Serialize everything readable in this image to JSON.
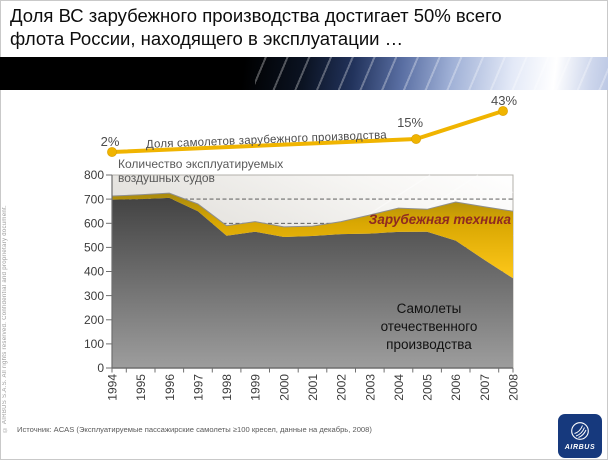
{
  "slide": {
    "title_line1": "Доля ВС зарубежного производства достигает 50% всего",
    "title_line2": "флота России, находящего в эксплуатации …",
    "source": "Источник: ACAS (Эксплуатируемые пассажирские самолеты ≥100 кресел, данные на декабрь, 2008)",
    "copyright": "© AIRBUS S.A.S. All rights reserved. Confidential and proprietary document.",
    "logo_text": "AIRBUS"
  },
  "chart_data": {
    "type": "area",
    "stacked": true,
    "title_lines": [
      "Количество эксплуатируемых",
      "воздушных судов"
    ],
    "years": [
      1994,
      1995,
      1996,
      1997,
      1998,
      1999,
      2000,
      2001,
      2002,
      2003,
      2004,
      2005,
      2006,
      2007,
      2008
    ],
    "series": [
      {
        "name": "Самолеты отечественного производства",
        "values": [
          698,
          700,
          705,
          650,
          548,
          565,
          543,
          547,
          555,
          557,
          564,
          565,
          528,
          448,
          372
        ]
      },
      {
        "name": "Зарубежная техника",
        "values": [
          15,
          18,
          20,
          30,
          42,
          42,
          42,
          41,
          52,
          77,
          99,
          93,
          160,
          220,
          278
        ]
      }
    ],
    "ylim": [
      0,
      800
    ],
    "yticks": [
      0,
      100,
      200,
      300,
      400,
      500,
      600,
      700,
      800
    ],
    "grid": "dashed horizontal, visible above areas",
    "legend_position": "labels inside plot",
    "pct_line": {
      "label": "Доля самолетов зарубежного производства",
      "points": [
        {
          "year": 1994,
          "pct": 2,
          "label": "2%"
        },
        {
          "year": 2005,
          "pct": 15,
          "label": "15%"
        },
        {
          "year": 2008,
          "pct": 43,
          "label": "43%"
        }
      ]
    },
    "area_labels": {
      "domestic_lines": [
        "Самолеты",
        "отечественного",
        "производства"
      ],
      "foreign": "Зарубежная техника"
    },
    "colors": {
      "gold": "#F0B400",
      "gold_dark": "#A8890D",
      "gold_bright": "#FEC81A",
      "dark_top": "#434343",
      "dark_bottom": "#9D9D9D",
      "red_label": "#8F2A21",
      "axis": "#6F6F6F",
      "text": "#3C3C3C",
      "muted_text": "#4D4D4D"
    }
  }
}
